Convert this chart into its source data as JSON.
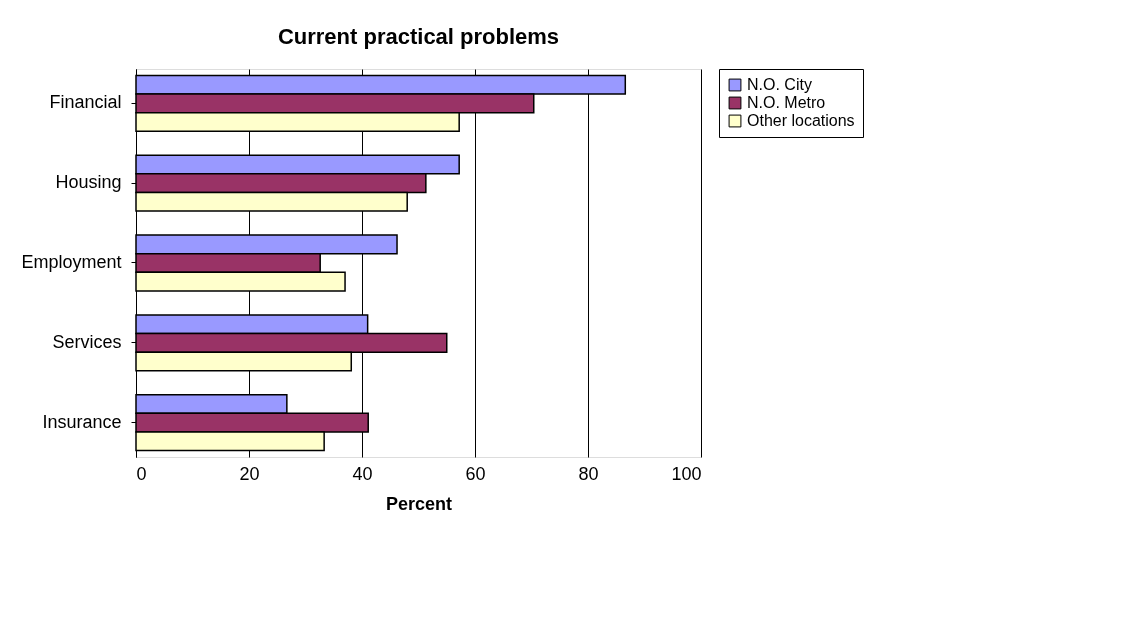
{
  "chart_data": {
    "type": "bar",
    "orientation": "horizontal",
    "title": "Current practical problems",
    "xlabel": "Percent",
    "categories": [
      "Financial",
      "Housing",
      "Employment",
      "Services",
      "Insurance"
    ],
    "series": [
      {
        "name": "N.O. City",
        "color": "#9999ff",
        "values": [
          86.6,
          57.2,
          46.2,
          41.0,
          26.7
        ]
      },
      {
        "name": "N.O. Metro",
        "color": "#993366",
        "values": [
          70.4,
          51.3,
          32.6,
          55.0,
          41.1
        ]
      },
      {
        "name": "Other locations",
        "color": "#ffffcc",
        "values": [
          57.2,
          48.0,
          37.0,
          38.1,
          33.3
        ]
      }
    ],
    "xlim": [
      0,
      100
    ],
    "xticks": [
      0,
      20,
      40,
      60,
      80,
      100
    ],
    "grid": "x",
    "legend": "right"
  }
}
